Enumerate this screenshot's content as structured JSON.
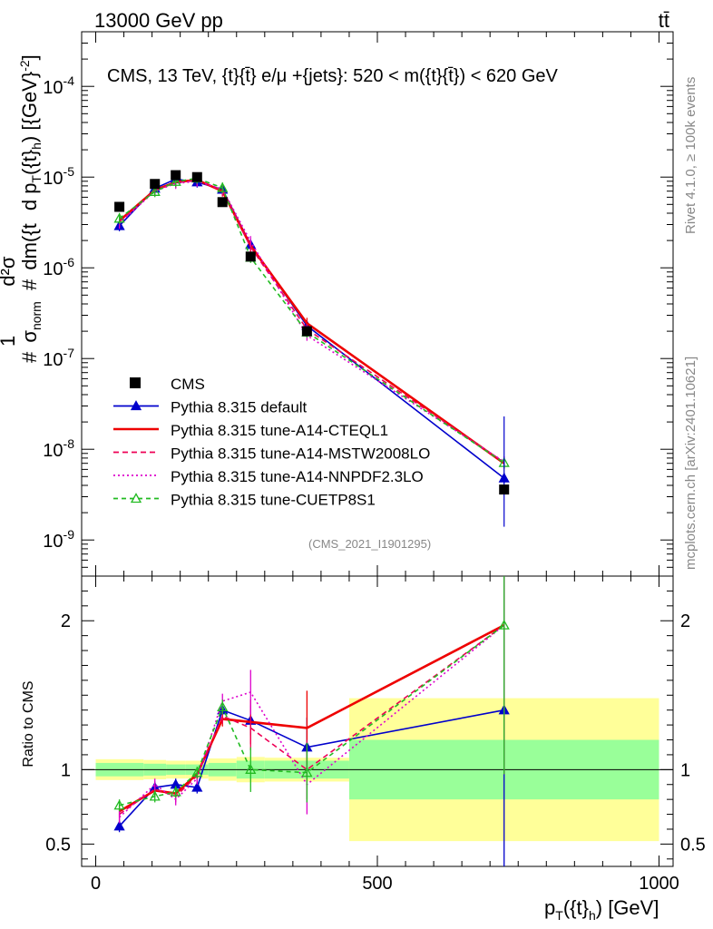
{
  "header": {
    "left": "13000 GeV pp",
    "right": "tt̄"
  },
  "side_labels": {
    "rivet": "Rivet 4.1.0, ≥ 100k events",
    "mcplots": "mcplots.cern.ch [arXiv:2401.10621]"
  },
  "chart_data": {
    "type": "line",
    "title": "CMS, 13 TeV, {t}{t̄} e/μ +{jets}: 520 < m({t}{t̄}) < 620 GeV",
    "watermark": "(CMS_2021_I1901295)",
    "ylabel": "#1/σnorm #d²σ/dm({t}{t̄}) d pT({t}h) [{GeV}⁻²]",
    "ylabel_parts": {
      "frac1_num": "1",
      "frac1_den": "σ",
      "frac1_den_sub": "norm",
      "prefix": "#",
      "frac2_num": "d²σ",
      "frac2_den": "dm({t",
      "tail": "d p",
      "tail_sub": "T",
      "tail2": "({t}",
      "tail2_sub": "h",
      "tail3": ") [{GeV}",
      "tail3_sup": "-2",
      "tail4": "]"
    },
    "xlabel": "pT({t}h) [GeV]",
    "xlabel_parts": {
      "p": "p",
      "sub1": "T",
      "mid": "({t}",
      "sub2": "h",
      "end": ") [GeV]"
    },
    "ratio_ylabel": "Ratio to CMS",
    "xlim": [
      -25,
      1025
    ],
    "ylim": [
      4e-10,
      0.0004
    ],
    "ratio_ylim": [
      0.35,
      2.3
    ],
    "x_ticks": [
      0,
      500,
      1000
    ],
    "y_ticks": [
      {
        "base": "10",
        "exp": "-9",
        "v": 1e-09
      },
      {
        "base": "10",
        "exp": "-8",
        "v": 1e-08
      },
      {
        "base": "10",
        "exp": "-7",
        "v": 1e-07
      },
      {
        "base": "10",
        "exp": "-6",
        "v": 1e-06
      },
      {
        "base": "10",
        "exp": "-5",
        "v": 1e-05
      },
      {
        "base": "10",
        "exp": "-4",
        "v": 0.0001
      }
    ],
    "ratio_ticks": [
      {
        "label": "0.5",
        "v": 0.5
      },
      {
        "label": "1",
        "v": 1
      },
      {
        "label": "2",
        "v": 2
      }
    ],
    "bins": [
      [
        0,
        85
      ],
      [
        85,
        125
      ],
      [
        125,
        160
      ],
      [
        160,
        200
      ],
      [
        200,
        250
      ],
      [
        250,
        300
      ],
      [
        300,
        450
      ],
      [
        450,
        1000
      ]
    ],
    "x": [
      42,
      105,
      142,
      180,
      225,
      275,
      375,
      725
    ],
    "data": {
      "name": "CMS",
      "values": [
        4.7e-06,
        8.4e-06,
        1.05e-05,
        1e-05,
        5.3e-06,
        1.33e-06,
        2e-07,
        3.6e-09
      ],
      "band_stat": [
        0.045,
        0.04,
        0.035,
        0.035,
        0.045,
        0.06,
        0.06,
        0.2
      ],
      "band_tot": [
        0.07,
        0.065,
        0.06,
        0.06,
        0.075,
        0.085,
        0.08,
        0.48
      ]
    },
    "series": [
      {
        "name": "Pythia 8.315 default",
        "color": "#0000cc",
        "dash": "",
        "marker": "tri-filled",
        "values": [
          2.9e-06,
          7.5e-06,
          9.5e-06,
          8.8e-06,
          7.3e-06,
          1.8e-06,
          2.3e-07,
          4.8e-09
        ],
        "ratio": [
          0.62,
          0.88,
          0.9,
          0.88,
          1.4,
          1.33,
          1.15,
          1.4
        ],
        "rerr": [
          0.04,
          0.04,
          0.04,
          0.04,
          0.05,
          0.1,
          0.2,
          1.1
        ]
      },
      {
        "name": "Pythia 8.315 tune-A14-CTEQL1",
        "color": "#ee0000",
        "dash": "",
        "marker": "none",
        "values": [
          3.3e-06,
          7.2e-06,
          8.8e-06,
          9.3e-06,
          7e-06,
          1.75e-06,
          2.45e-07,
          7e-09
        ],
        "ratio": [
          0.72,
          0.86,
          0.84,
          0.97,
          1.34,
          1.32,
          1.28,
          1.97
        ],
        "rerr": [
          0.04,
          0.04,
          0.04,
          0.04,
          0.05,
          0.15,
          0.25,
          1.0
        ]
      },
      {
        "name": "Pythia 8.315 tune-A14-MSTW2008LO",
        "color": "#ee0055",
        "dash": "6,4",
        "marker": "none",
        "values": [
          3.2e-06,
          7.1e-06,
          8.7e-06,
          9.2e-06,
          7.1e-06,
          1.7e-06,
          2.1e-07,
          7.2e-09
        ],
        "ratio": [
          0.7,
          0.87,
          0.82,
          0.96,
          1.36,
          1.28,
          1.0,
          1.97
        ],
        "rerr": [
          0.04,
          0.04,
          0.04,
          0.04,
          0.05,
          0.15,
          0.2,
          1.0
        ]
      },
      {
        "name": "Pythia 8.315 tune-A14-NNPDF2.3LO",
        "color": "#dd00cc",
        "dash": "2,3",
        "marker": "none",
        "values": [
          3.1e-06,
          7e-06,
          8.5e-06,
          9e-06,
          7.4e-06,
          1.95e-06,
          1.8e-07,
          7.3e-09
        ],
        "ratio": [
          0.68,
          0.9,
          0.8,
          0.94,
          1.46,
          1.52,
          0.9,
          1.97
        ],
        "rerr": [
          0.04,
          0.04,
          0.04,
          0.04,
          0.05,
          0.15,
          0.2,
          1.0
        ]
      },
      {
        "name": "Pythia 8.315 tune-CUETP8S1",
        "color": "#22bb22",
        "dash": "5,4",
        "marker": "tri-open",
        "values": [
          3.5e-06,
          6.9e-06,
          8.9e-06,
          9.7e-06,
          7.6e-06,
          1.3e-06,
          1.95e-07,
          7.1e-09
        ],
        "ratio": [
          0.76,
          0.82,
          0.85,
          0.98,
          1.42,
          1.0,
          0.98,
          1.97
        ],
        "rerr": [
          0.04,
          0.04,
          0.04,
          0.04,
          0.05,
          0.15,
          0.2,
          1.0
        ]
      }
    ]
  }
}
